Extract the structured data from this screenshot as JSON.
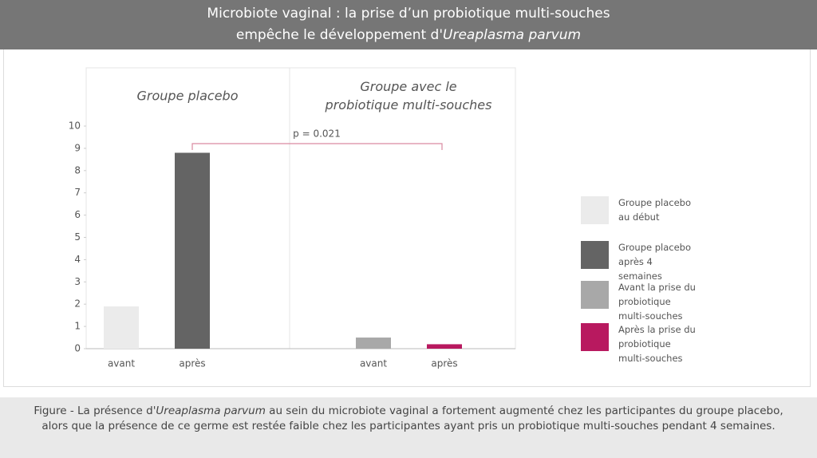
{
  "chart_data": {
    "type": "bar",
    "title": {
      "line1": "Microbiote vaginal : la prise d’un probiotique multi-souches",
      "line2": "empêche le développement d'",
      "line2_italic": "Ureaplasma parvum"
    },
    "group_labels": [
      {
        "lines": [
          "Groupe placebo"
        ]
      },
      {
        "lines": [
          "Groupe avec le",
          "probiotique multi-souches"
        ]
      }
    ],
    "annotation": "p = 0.021",
    "categories": [
      "avant",
      "après",
      "avant",
      "après"
    ],
    "series": [
      {
        "name": "Groupe placebo au début",
        "color": "#ebebeb",
        "values": [
          1.9,
          null,
          null,
          null
        ]
      },
      {
        "name": "Groupe placebo après 4 semaines",
        "color": "#646464",
        "values": [
          null,
          8.8,
          null,
          null
        ]
      },
      {
        "name": "Avant la prise du probiotique multi-souches",
        "color": "#a8a8a8",
        "values": [
          null,
          null,
          0.5,
          null
        ]
      },
      {
        "name": "Après la prise du probiotique multi-souches",
        "color": "#b8195f",
        "values": [
          null,
          null,
          null,
          0.2
        ]
      }
    ],
    "ylim": [
      0,
      10
    ],
    "yticks": [
      0,
      1,
      2,
      3,
      4,
      5,
      6,
      7,
      8,
      9,
      10
    ],
    "caption": {
      "before": "Figure - La présence d'",
      "italic": "Ureaplasma parvum",
      "after": " au sein du microbiote vaginal a fortement augmenté chez les participantes du groupe placebo, alors que la présence de ce germe est restée faible chez les participantes ayant pris un probiotique multi-souches pendant 4 semaines."
    }
  }
}
